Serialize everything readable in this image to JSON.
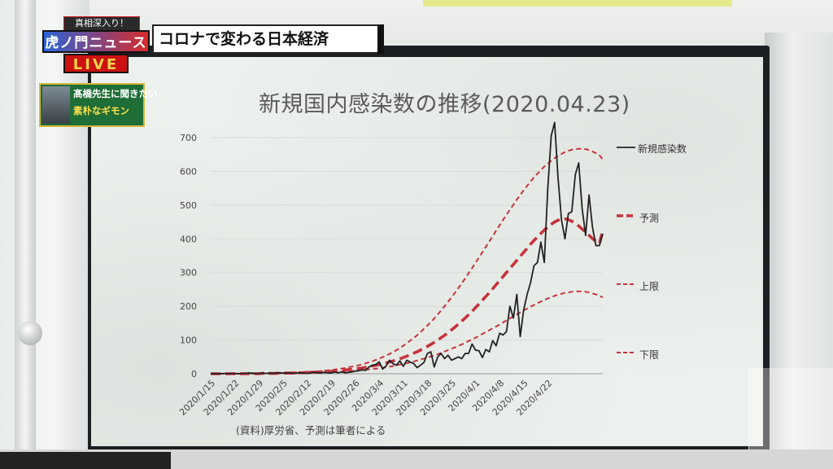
{
  "broadcast": {
    "logo_top": "真相深入り！",
    "logo_main": "虎ノ門ニュース",
    "logo_live": "LIVE",
    "headline": "コロナで変わる日本経済",
    "segment_line1": "髙橋先生に聞きたい",
    "segment_line2": "素朴なギモン"
  },
  "chart_data": {
    "type": "line",
    "title": "新規国内感染数の推移(2020.04.23)",
    "xlabel": "",
    "ylabel": "",
    "ylim": [
      0,
      700
    ],
    "yticks": [
      "0",
      "100",
      "200",
      "300",
      "400",
      "500",
      "600",
      "700"
    ],
    "xticks": [
      "2020/1/15",
      "2020/1/22",
      "2020/1/29",
      "2020/2/5",
      "2020/2/12",
      "2020/2/19",
      "2020/2/26",
      "2020/3/4",
      "2020/3/11",
      "2020/3/18",
      "2020/3/25",
      "2020/4/1",
      "2020/4/8",
      "2020/4/15",
      "2020/4/22"
    ],
    "grid": "horizontal",
    "legend_position": "right",
    "source": "(資料)厚労省、予測は筆者による",
    "series": [
      {
        "name": "新規感染数",
        "style": "solid",
        "color": "#222222",
        "values": [
          0,
          0,
          0,
          0,
          1,
          0,
          1,
          1,
          0,
          1,
          1,
          2,
          2,
          1,
          1,
          2,
          1,
          2,
          1,
          2,
          3,
          2,
          2,
          3,
          1,
          2,
          3,
          2,
          1,
          2,
          5,
          3,
          2,
          4,
          3,
          2,
          5,
          3,
          5,
          3,
          4,
          5,
          8,
          9,
          11,
          10,
          20,
          25,
          27,
          35,
          14,
          23,
          40,
          30,
          25,
          38,
          22,
          40,
          35,
          30,
          18,
          25,
          33,
          60,
          65,
          20,
          50,
          60,
          45,
          55,
          40,
          45,
          50,
          45,
          60,
          60,
          88,
          70,
          68,
          48,
          72,
          65,
          98,
          83,
          120,
          115,
          125,
          200,
          165,
          235,
          110,
          190,
          235,
          270,
          320,
          330,
          390,
          330,
          550,
          705,
          745,
          580,
          455,
          400,
          475,
          480,
          590,
          625,
          490,
          410,
          530,
          435,
          380,
          380,
          415
        ]
      },
      {
        "name": "予測",
        "style": "dashed-thick",
        "color": "#c8323c",
        "values": [
          0,
          0,
          0,
          0,
          0,
          0,
          0,
          0,
          0,
          0,
          0,
          0,
          0,
          0,
          0,
          1,
          1,
          1,
          1,
          1,
          2,
          2,
          2,
          2,
          2,
          3,
          3,
          3,
          4,
          4,
          4,
          5,
          5,
          6,
          7,
          7,
          8,
          9,
          10,
          11,
          12,
          13,
          14,
          16,
          17,
          19,
          21,
          23,
          25,
          27,
          29,
          32,
          35,
          38,
          41,
          44,
          48,
          52,
          56,
          61,
          65,
          70,
          75,
          81,
          87,
          93,
          100,
          107,
          114,
          122,
          130,
          138,
          147,
          156,
          165,
          175,
          185,
          196,
          207,
          218,
          229,
          240,
          252,
          264,
          276,
          288,
          300,
          312,
          324,
          336,
          348,
          360,
          372,
          384,
          395,
          406,
          416,
          426,
          435,
          443,
          450,
          455,
          458,
          459,
          457,
          452,
          446,
          438,
          429,
          420,
          410,
          401,
          393,
          386,
          424
        ]
      },
      {
        "name": "上限",
        "style": "dashed",
        "color": "#c8323c",
        "values": [
          0,
          0,
          0,
          0,
          0,
          0,
          0,
          0,
          0,
          0,
          0,
          0,
          0,
          1,
          1,
          1,
          1,
          1,
          2,
          2,
          2,
          2,
          3,
          3,
          4,
          4,
          4,
          5,
          5,
          6,
          7,
          7,
          8,
          9,
          10,
          11,
          12,
          14,
          15,
          17,
          19,
          21,
          23,
          25,
          28,
          31,
          34,
          37,
          41,
          45,
          49,
          54,
          59,
          64,
          70,
          76,
          83,
          90,
          98,
          106,
          114,
          123,
          133,
          143,
          153,
          164,
          176,
          188,
          200,
          213,
          226,
          240,
          254,
          268,
          283,
          298,
          313,
          329,
          345,
          360,
          376,
          392,
          408,
          424,
          440,
          456,
          471,
          486,
          501,
          516,
          530,
          544,
          557,
          570,
          582,
          593,
          604,
          614,
          623,
          631,
          639,
          646,
          652,
          657,
          661,
          664,
          666,
          667,
          667,
          666,
          663,
          659,
          654,
          648,
          635
        ]
      },
      {
        "name": "下限",
        "style": "dashed",
        "color": "#c8323c",
        "values": [
          0,
          0,
          0,
          0,
          0,
          0,
          0,
          0,
          0,
          0,
          0,
          0,
          0,
          0,
          0,
          0,
          0,
          1,
          1,
          1,
          1,
          1,
          1,
          1,
          1,
          2,
          2,
          2,
          2,
          3,
          3,
          3,
          3,
          4,
          4,
          5,
          5,
          6,
          6,
          7,
          7,
          8,
          9,
          10,
          11,
          12,
          13,
          14,
          15,
          16,
          18,
          19,
          21,
          23,
          25,
          27,
          29,
          31,
          34,
          36,
          39,
          42,
          45,
          48,
          51,
          55,
          58,
          62,
          66,
          70,
          74,
          78,
          83,
          87,
          92,
          97,
          102,
          107,
          112,
          118,
          123,
          129,
          135,
          140,
          146,
          152,
          158,
          164,
          170,
          176,
          182,
          188,
          193,
          199,
          204,
          209,
          214,
          219,
          223,
          227,
          231,
          234,
          237,
          240,
          241,
          243,
          244,
          244,
          244,
          243,
          241,
          238,
          235,
          231,
          226
        ]
      }
    ]
  }
}
